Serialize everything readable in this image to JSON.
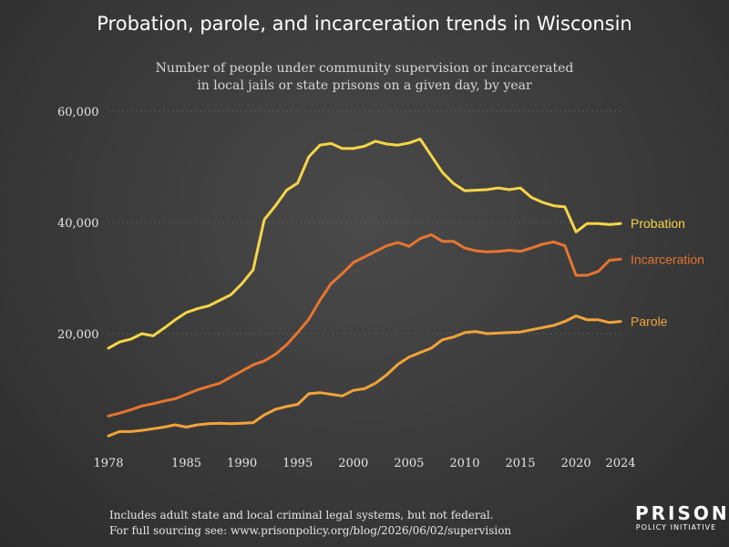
{
  "title": "Probation, parole, and incarceration trends in Wisconsin",
  "subtitle_lines": [
    "Number of people under community supervision or incarcerated",
    "in local jails or state prisons on a given day, by year"
  ],
  "footer_lines": [
    "Includes adult state and local criminal legal systems, but not federal.",
    "For full sourcing see: www.prisonpolicy.org/blog/2026/06/02/supervision"
  ],
  "logo": {
    "main": "PRISON",
    "sub": "POLICY INITIATIVE"
  },
  "chart_data": {
    "type": "line",
    "xlim": [
      1978,
      2024
    ],
    "ylim": [
      0,
      60000
    ],
    "x_ticks": [
      1978,
      1985,
      1990,
      1995,
      2000,
      2005,
      2010,
      2015,
      2020,
      2024
    ],
    "y_ticks": [
      {
        "value": 20000,
        "label": "20,000"
      },
      {
        "value": 40000,
        "label": "40,000"
      },
      {
        "value": 60000,
        "label": "60,000"
      }
    ],
    "grid": "horizontal",
    "colors": {
      "Probation": "#f5d547",
      "Incarceration": "#e8752f",
      "Parole": "#f2a33a",
      "grid": "#5a5a5a"
    },
    "x": [
      1978,
      1979,
      1980,
      1981,
      1982,
      1983,
      1984,
      1985,
      1986,
      1987,
      1988,
      1989,
      1990,
      1991,
      1992,
      1993,
      1994,
      1995,
      1996,
      1997,
      1998,
      1999,
      2000,
      2001,
      2002,
      2003,
      2004,
      2005,
      2006,
      2007,
      2008,
      2009,
      2010,
      2011,
      2012,
      2013,
      2014,
      2015,
      2016,
      2017,
      2018,
      2019,
      2020,
      2021,
      2022,
      2023,
      2024
    ],
    "series": [
      {
        "name": "Probation",
        "values": [
          17400,
          18500,
          19000,
          20000,
          19600,
          21000,
          22500,
          23800,
          24500,
          25000,
          26000,
          27000,
          29000,
          31500,
          40500,
          43000,
          45800,
          47100,
          51800,
          53900,
          54200,
          53300,
          53300,
          53700,
          54600,
          54100,
          53900,
          54300,
          55000,
          52000,
          49000,
          47000,
          45700,
          45800,
          45900,
          46200,
          45900,
          46200,
          44500,
          43600,
          43000,
          42800,
          38300,
          39800,
          39800,
          39600,
          39800
        ]
      },
      {
        "name": "Incarceration",
        "values": [
          5200,
          5700,
          6300,
          7000,
          7400,
          7900,
          8300,
          9100,
          9900,
          10500,
          11100,
          12200,
          13300,
          14400,
          15100,
          16300,
          18000,
          20200,
          22600,
          26000,
          29000,
          30800,
          32800,
          33800,
          34800,
          35800,
          36400,
          35700,
          37100,
          37800,
          36600,
          36600,
          35400,
          34900,
          34700,
          34800,
          35000,
          34800,
          35400,
          36100,
          36500,
          35800,
          30500,
          30500,
          31200,
          33200,
          33400
        ]
      },
      {
        "name": "Parole",
        "values": [
          1600,
          2400,
          2400,
          2600,
          2900,
          3200,
          3600,
          3200,
          3600,
          3800,
          3900,
          3800,
          3900,
          4000,
          5400,
          6400,
          6900,
          7300,
          9200,
          9400,
          9100,
          8800,
          9800,
          10100,
          11100,
          12600,
          14500,
          15800,
          16600,
          17400,
          18900,
          19400,
          20200,
          20400,
          20000,
          20100,
          20200,
          20300,
          20700,
          21100,
          21500,
          22200,
          23200,
          22500,
          22500,
          22000,
          22200
        ]
      }
    ]
  }
}
